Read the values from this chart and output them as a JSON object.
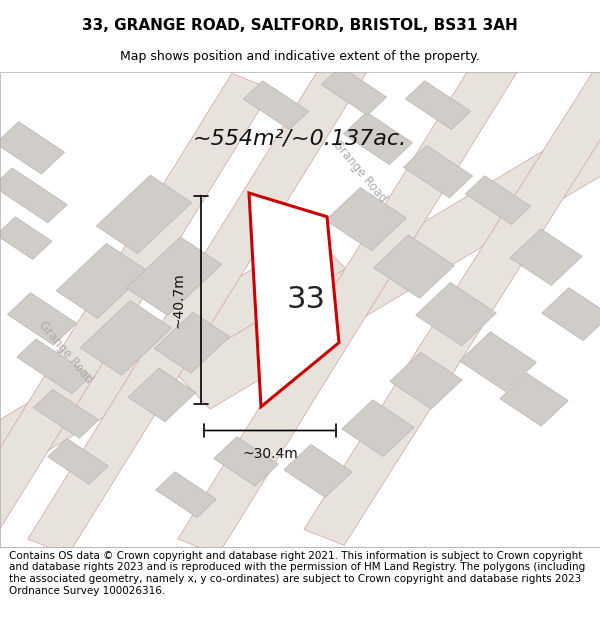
{
  "title": "33, GRANGE ROAD, SALTFORD, BRISTOL, BS31 3AH",
  "subtitle": "Map shows position and indicative extent of the property.",
  "area_text": "~554m²/~0.137ac.",
  "width_label": "~30.4m",
  "height_label": "~40.7m",
  "number_label": "33",
  "footer_text": "Contains OS data © Crown copyright and database right 2021. This information is subject to Crown copyright and database rights 2023 and is reproduced with the permission of HM Land Registry. The polygons (including the associated geometry, namely x, y co-ordinates) are subject to Crown copyright and database rights 2023 Ordnance Survey 100026316.",
  "background_color": "#f0eeec",
  "road_fill": "#e8e4e0",
  "building_fill": "#d0ccc8",
  "building_edge": "#b8b4b0",
  "highlight_color": "#cc0000",
  "road_line_color": "#d4a0a0",
  "title_fontsize": 11,
  "subtitle_fontsize": 9,
  "footer_fontsize": 7.5,
  "area_fontsize": 16,
  "number_fontsize": 22,
  "dim_fontsize": 10
}
